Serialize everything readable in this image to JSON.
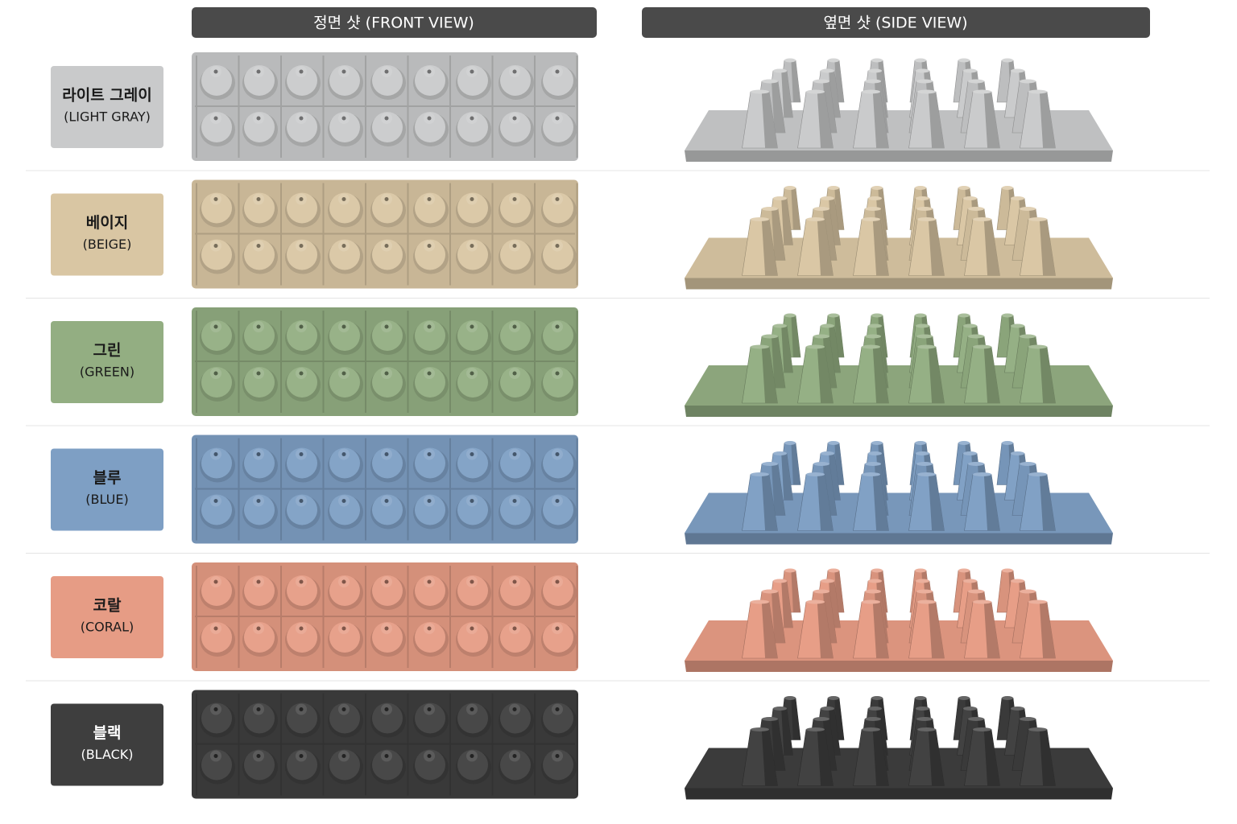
{
  "headers": {
    "front": "정면 샷 (FRONT VIEW)",
    "side": "옆면 샷 (SIDE VIEW)"
  },
  "rows": [
    {
      "name": "라이트 그레이",
      "name_en": "(LIGHT GRAY)",
      "color": "#c9cacb"
    },
    {
      "name": "베이지",
      "name_en": "(BEIGE)",
      "color": "#d9c6a3"
    },
    {
      "name": "그린",
      "name_en": "(GREEN)",
      "color": "#93ae82"
    },
    {
      "name": "블루",
      "name_en": "(BLUE)",
      "color": "#7e9fc4"
    },
    {
      "name": "코랄",
      "name_en": "(CORAL)",
      "color": "#e69c85"
    },
    {
      "name": "블랙",
      "name_en": "(BLACK)",
      "color": "#3e3e3e"
    }
  ]
}
